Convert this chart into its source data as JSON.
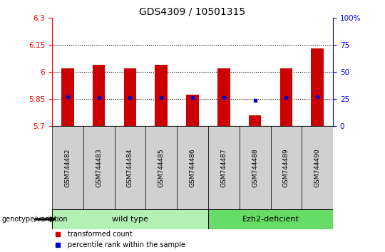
{
  "title": "GDS4309 / 10501315",
  "samples": [
    "GSM744482",
    "GSM744483",
    "GSM744484",
    "GSM744485",
    "GSM744486",
    "GSM744487",
    "GSM744488",
    "GSM744489",
    "GSM744490"
  ],
  "red_values": [
    6.02,
    6.04,
    6.02,
    6.04,
    5.875,
    6.02,
    5.76,
    6.02,
    6.13
  ],
  "blue_values": [
    5.862,
    5.856,
    5.856,
    5.856,
    5.856,
    5.856,
    5.842,
    5.856,
    5.862
  ],
  "ylim_left": [
    5.7,
    6.3
  ],
  "ylim_right": [
    0,
    100
  ],
  "yticks_left": [
    5.7,
    5.85,
    6.0,
    6.15,
    6.3
  ],
  "yticks_right": [
    0,
    25,
    50,
    75,
    100
  ],
  "ytick_labels_left": [
    "5.7",
    "5.85",
    "6",
    "6.15",
    "6.3"
  ],
  "ytick_labels_right": [
    "0",
    "25",
    "50",
    "75",
    "100%"
  ],
  "hlines": [
    5.85,
    6.0,
    6.15
  ],
  "bar_bottom": 5.7,
  "bar_color": "#cc0000",
  "dot_color": "#0000cc",
  "groups": [
    {
      "label": "wild type",
      "start": 0,
      "end": 4,
      "color": "#b3f0b3"
    },
    {
      "label": "Ezh2-deficient",
      "start": 5,
      "end": 8,
      "color": "#66dd66"
    }
  ],
  "group_row_label": "genotype/variation",
  "legend_red": "transformed count",
  "legend_blue": "percentile rank within the sample",
  "title_fontsize": 10,
  "tick_fontsize": 7.5,
  "sample_fontsize": 6.5,
  "group_label_fontsize": 8
}
